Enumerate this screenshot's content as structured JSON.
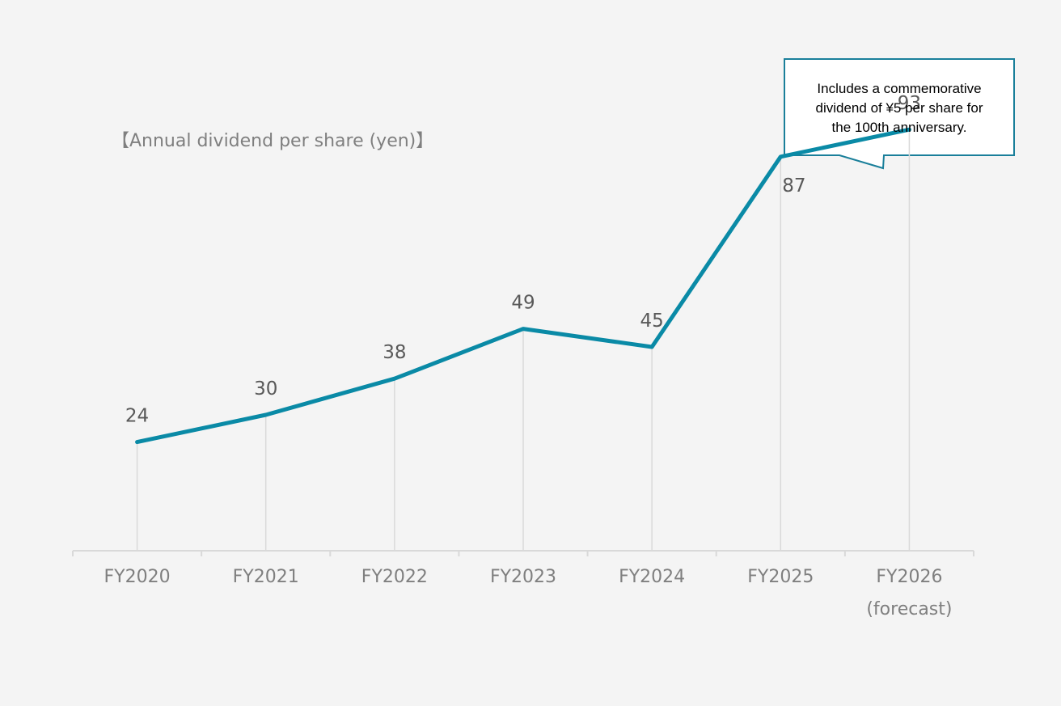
{
  "chart_data": {
    "type": "line",
    "title": "【Annual dividend per share (yen)】",
    "categories": [
      [
        "FY2020"
      ],
      [
        "FY2021"
      ],
      [
        "FY2022"
      ],
      [
        "FY2023"
      ],
      [
        "FY2024"
      ],
      [
        "FY2025"
      ],
      [
        "FY2026",
        "(forecast)"
      ]
    ],
    "values": [
      24,
      30,
      38,
      49,
      45,
      87,
      93
    ],
    "ylim": [
      0,
      100
    ],
    "grid": false,
    "drop_lines": true,
    "line_color": "#0a8aa6",
    "annotation": {
      "lines": [
        "Includes a commemorative",
        "dividend of ¥5 per share for",
        "the 100th anniversary."
      ],
      "target_category": "FY2026"
    }
  }
}
